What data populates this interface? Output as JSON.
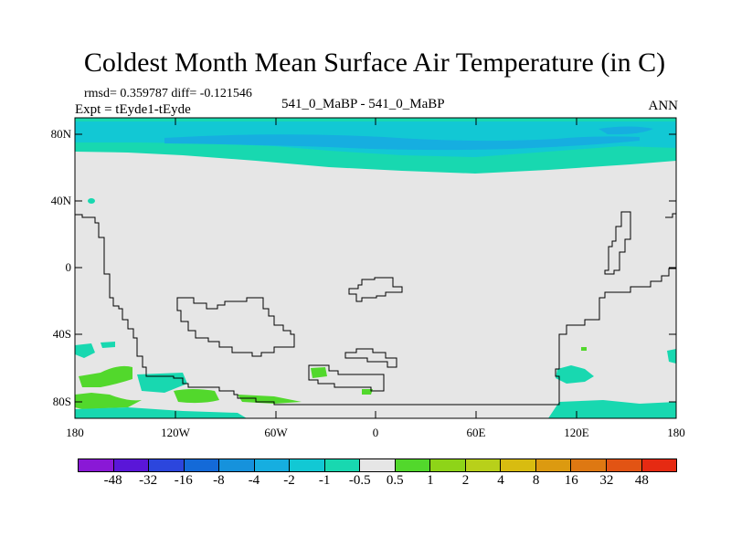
{
  "header": {
    "title": "Coldest Month Mean Surface Air Temperature (in C)",
    "stats": "rmsd= 0.359787 diff= -0.121546",
    "expt": "Expt = tEyde1-tEyde",
    "subtitle": "541_0_MaBP - 541_0_MaBP",
    "season": "ANN"
  },
  "axes": {
    "lat_labels": [
      "80N",
      "40N",
      "0",
      "40S",
      "80S"
    ],
    "lon_labels": [
      "180",
      "120W",
      "60W",
      "0",
      "60E",
      "120E",
      "180"
    ]
  },
  "colorbar": {
    "colors": [
      "#8a18d6",
      "#5a16d8",
      "#2c46dd",
      "#146ad8",
      "#1692dc",
      "#16aee0",
      "#12c8d4",
      "#18d8b0",
      "#e6e6e6",
      "#52d82c",
      "#8ed418",
      "#b8d01a",
      "#d8bc10",
      "#dc9a10",
      "#de7812",
      "#e25414",
      "#e62a12"
    ],
    "labels": [
      "-48",
      "-32",
      "-16",
      "-8",
      "-4",
      "-2",
      "-1",
      "-0.5",
      "0.5",
      "1",
      "2",
      "4",
      "8",
      "16",
      "32",
      "48"
    ]
  },
  "map_colors": {
    "background": "#e6e6e6",
    "cool": "#18d8b0",
    "cooler": "#12c8d4",
    "coolest": "#16aee0",
    "warm": "#52d82c"
  }
}
